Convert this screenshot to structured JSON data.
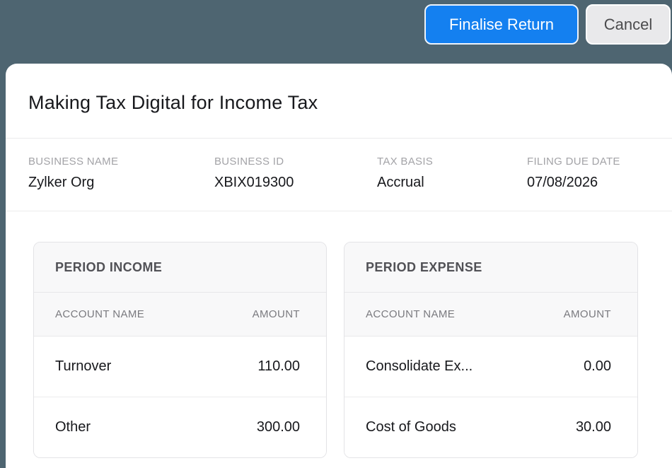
{
  "page": {
    "background_color": "#4e6571",
    "card_color": "#ffffff",
    "accent_color": "#1480f0"
  },
  "toolbar": {
    "finalise_label": "Finalise Return",
    "cancel_label": "Cancel"
  },
  "header": {
    "title": "Making Tax Digital for Income Tax"
  },
  "business_info": {
    "fields": [
      {
        "label": "BUSINESS NAME",
        "value": "Zylker Org"
      },
      {
        "label": "BUSINESS ID",
        "value": "XBIX019300"
      },
      {
        "label": "TAX BASIS",
        "value": "Accrual"
      },
      {
        "label": "FILING DUE DATE",
        "value": "07/08/2026"
      }
    ]
  },
  "tables": {
    "income": {
      "title": "PERIOD INCOME",
      "columns": [
        "ACCOUNT NAME",
        "AMOUNT"
      ],
      "rows": [
        {
          "account": "Turnover",
          "amount": "110.00"
        },
        {
          "account": "Other",
          "amount": "300.00"
        }
      ]
    },
    "expense": {
      "title": "PERIOD EXPENSE",
      "columns": [
        "ACCOUNT NAME",
        "AMOUNT"
      ],
      "rows": [
        {
          "account": "Consolidate Ex...",
          "amount": "0.00"
        },
        {
          "account": "Cost of Goods",
          "amount": "30.00"
        }
      ]
    }
  }
}
